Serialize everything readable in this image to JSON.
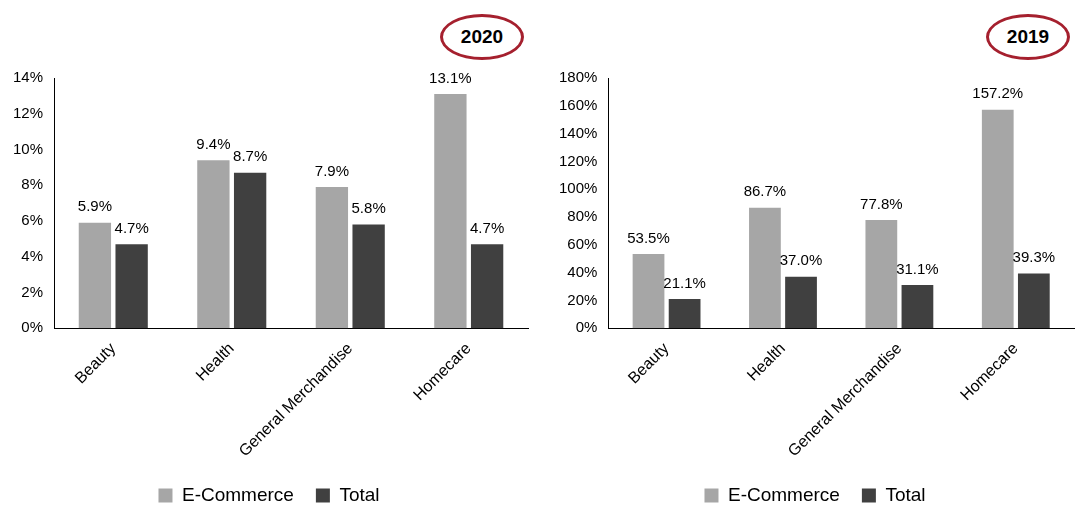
{
  "chart_data": [
    {
      "type": "bar",
      "title": "2020",
      "categories": [
        "Beauty",
        "Health",
        "General Merchandise",
        "Homecare"
      ],
      "series": [
        {
          "name": "E-Commerce",
          "color": "#a6a6a6",
          "values": [
            5.9,
            9.4,
            7.9,
            13.1
          ],
          "value_labels": [
            "5.9%",
            "9.4%",
            "7.9%",
            "13.1%"
          ]
        },
        {
          "name": "Total",
          "color": "#404040",
          "values": [
            4.7,
            8.7,
            5.8,
            4.7
          ],
          "value_labels": [
            "4.7%",
            "8.7%",
            "5.8%",
            "4.7%"
          ]
        }
      ],
      "ylim": [
        0,
        14
      ],
      "yticks": [
        {
          "value": 0,
          "label": "0%"
        },
        {
          "value": 2,
          "label": "2%"
        },
        {
          "value": 4,
          "label": "4%"
        },
        {
          "value": 6,
          "label": "6%"
        },
        {
          "value": 8,
          "label": "8%"
        },
        {
          "value": 10,
          "label": "10%"
        },
        {
          "value": 12,
          "label": "12%"
        },
        {
          "value": 14,
          "label": "14%"
        }
      ],
      "grid": false,
      "legend": "bottom",
      "data_labels": true
    },
    {
      "type": "bar",
      "title": "2019",
      "categories": [
        "Beauty",
        "Health",
        "General Merchandise",
        "Homecare"
      ],
      "series": [
        {
          "name": "E-Commerce",
          "color": "#a6a6a6",
          "values": [
            53.5,
            86.7,
            77.8,
            157.2
          ],
          "value_labels": [
            "53.5%",
            "86.7%",
            "77.8%",
            "157.2%"
          ]
        },
        {
          "name": "Total",
          "color": "#404040",
          "values": [
            21.1,
            37.0,
            31.1,
            39.3
          ],
          "value_labels": [
            "21.1%",
            "37.0%",
            "31.1%",
            "39.3%"
          ]
        }
      ],
      "ylim": [
        0,
        180
      ],
      "yticks": [
        {
          "value": 0,
          "label": "0%"
        },
        {
          "value": 20,
          "label": "20%"
        },
        {
          "value": 40,
          "label": "40%"
        },
        {
          "value": 60,
          "label": "60%"
        },
        {
          "value": 80,
          "label": "80%"
        },
        {
          "value": 100,
          "label": "100%"
        },
        {
          "value": 120,
          "label": "120%"
        },
        {
          "value": 140,
          "label": "140%"
        },
        {
          "value": 160,
          "label": "160%"
        },
        {
          "value": 180,
          "label": "180%"
        }
      ],
      "grid": false,
      "legend": "bottom",
      "data_labels": true
    }
  ]
}
